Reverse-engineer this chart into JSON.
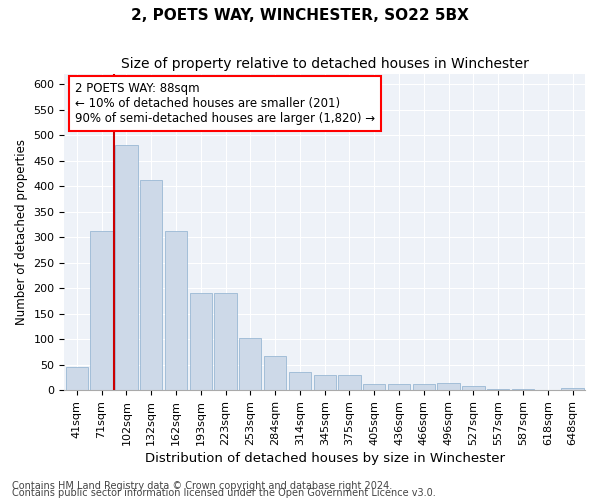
{
  "title": "2, POETS WAY, WINCHESTER, SO22 5BX",
  "subtitle": "Size of property relative to detached houses in Winchester",
  "xlabel": "Distribution of detached houses by size in Winchester",
  "ylabel": "Number of detached properties",
  "categories": [
    "41sqm",
    "71sqm",
    "102sqm",
    "132sqm",
    "162sqm",
    "193sqm",
    "223sqm",
    "253sqm",
    "284sqm",
    "314sqm",
    "345sqm",
    "375sqm",
    "405sqm",
    "436sqm",
    "466sqm",
    "496sqm",
    "527sqm",
    "557sqm",
    "587sqm",
    "618sqm",
    "648sqm"
  ],
  "values": [
    45,
    312,
    480,
    412,
    312,
    190,
    190,
    103,
    68,
    36,
    30,
    30,
    13,
    13,
    13,
    14,
    8,
    3,
    3,
    1,
    4
  ],
  "bar_color": "#cdd9e8",
  "bar_edge_color": "#9ab8d4",
  "property_line_x": 1.5,
  "property_line_label": "2 POETS WAY: 88sqm",
  "annotation_line1": "← 10% of detached houses are smaller (201)",
  "annotation_line2": "90% of semi-detached houses are larger (1,820) →",
  "ylim": [
    0,
    620
  ],
  "yticks": [
    0,
    50,
    100,
    150,
    200,
    250,
    300,
    350,
    400,
    450,
    500,
    550,
    600
  ],
  "footnote1": "Contains HM Land Registry data © Crown copyright and database right 2024.",
  "footnote2": "Contains public sector information licensed under the Open Government Licence v3.0.",
  "background_color": "#eef2f8",
  "title_fontsize": 11,
  "subtitle_fontsize": 10,
  "xlabel_fontsize": 9.5,
  "ylabel_fontsize": 8.5,
  "tick_fontsize": 8,
  "annotation_fontsize": 8.5,
  "footnote_fontsize": 7
}
